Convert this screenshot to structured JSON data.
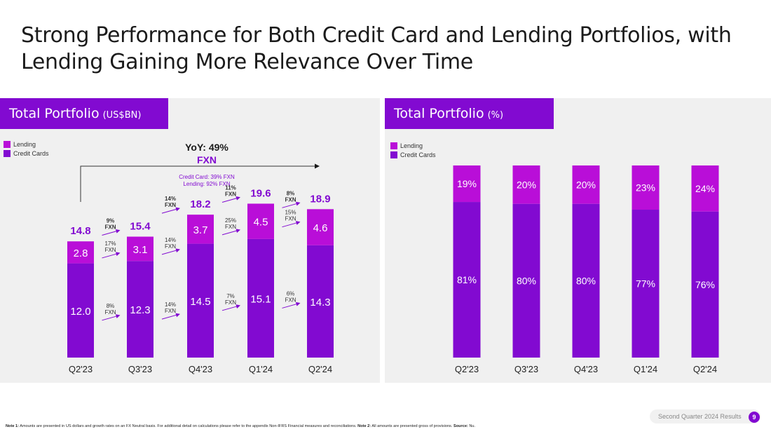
{
  "title": "Strong Performance for Both Credit Card and Lending Portfolios, with Lending Gaining More Relevance Over Time",
  "colors": {
    "lending": "#b90ed8",
    "credit_cards": "#820ad1",
    "accent": "#820ad1",
    "panel_bg": "#f0f0f0"
  },
  "left_panel": {
    "header": "Total Portfolio",
    "unit": "(US$BN)",
    "legend": [
      "Lending",
      "Credit Cards"
    ],
    "yoy_label": "YoY: 49%",
    "yoy_fxn": "FXN",
    "yoy_detail_1": "Credit Card: 39% FXN",
    "yoy_detail_2": "Lending: 92% FXN"
  },
  "right_panel": {
    "header": "Total Portfolio",
    "unit": "(%)",
    "legend": [
      "Lending",
      "Credit Cards"
    ]
  },
  "chart_data": [
    {
      "type": "bar",
      "stacked": true,
      "categories": [
        "Q2'23",
        "Q3'23",
        "Q4'23",
        "Q1'24",
        "Q2'24"
      ],
      "series": [
        {
          "name": "Credit Cards",
          "values": [
            12.0,
            12.3,
            14.5,
            15.1,
            14.3
          ]
        },
        {
          "name": "Lending",
          "values": [
            2.8,
            3.1,
            3.7,
            4.5,
            4.6
          ]
        }
      ],
      "value_labels": {
        "credit_cards": [
          "12.0",
          "12.3",
          "14.5",
          "15.1",
          "14.3"
        ],
        "lending": [
          "2.8",
          "3.1",
          "3.7",
          "4.5",
          "4.6"
        ]
      },
      "totals": [
        "14.8",
        "15.4",
        "18.2",
        "19.6",
        "18.9"
      ],
      "growth": {
        "total": [
          [
            "9%",
            "FXN"
          ],
          [
            "14%",
            "FXN"
          ],
          [
            "11%",
            "FXN"
          ],
          [
            "8%",
            "FXN"
          ]
        ],
        "lending": [
          [
            "17%",
            "FXN"
          ],
          [
            "14%",
            "FXN"
          ],
          [
            "25%",
            "FXN"
          ],
          [
            "15%",
            "FXN"
          ]
        ],
        "credit_cards": [
          [
            "8%",
            "FXN"
          ],
          [
            "14%",
            "FXN"
          ],
          [
            "7%",
            "FXN"
          ],
          [
            "6%",
            "FXN"
          ]
        ]
      },
      "legend": "top-left"
    },
    {
      "type": "bar",
      "stacked": true,
      "percent": true,
      "categories": [
        "Q2'23",
        "Q3'23",
        "Q4'23",
        "Q1'24",
        "Q2'24"
      ],
      "series": [
        {
          "name": "Credit Cards",
          "values": [
            81,
            80,
            80,
            77,
            76
          ],
          "labels": [
            "81%",
            "80%",
            "80%",
            "77%",
            "76%"
          ]
        },
        {
          "name": "Lending",
          "values": [
            19,
            20,
            20,
            23,
            24
          ],
          "labels": [
            "19%",
            "20%",
            "20%",
            "23%",
            "24%"
          ]
        }
      ],
      "ylim": [
        0,
        100
      ],
      "legend": "top-left"
    }
  ],
  "footer": {
    "results": "Second Quarter 2024 Results",
    "page": "9",
    "note_label_1": "Note 1:",
    "note_text_1": " Amounts are presented in US dollars and growth rates on an FX Neutral basis. For additional detail on calculations please refer to the appendix Non-IFRS Financial measures and reconciliations. ",
    "note_label_2": "Note 2:",
    "note_text_2": " All amounts are presented gross of provisions. ",
    "source_label": "Source:",
    "source_text": " Nu."
  }
}
